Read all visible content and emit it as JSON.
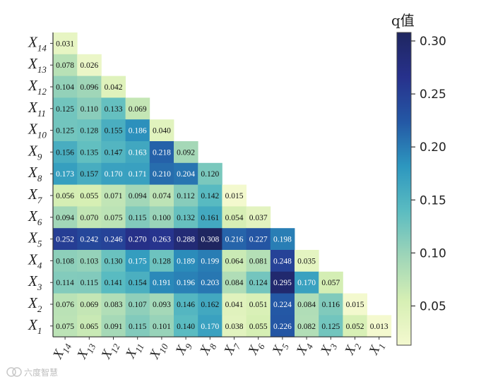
{
  "chart_data": {
    "type": "heatmap",
    "layout": "lower-triangle",
    "colorbar_title": "q值",
    "colorbar_ticks": [
      "0.05",
      "0.10",
      "0.15",
      "0.20",
      "0.25",
      "0.30"
    ],
    "colorbar_range": [
      0.013,
      0.308
    ],
    "colormap_stops": [
      "#f4f9cf",
      "#d6efb4",
      "#9ed5b8",
      "#5bbcc1",
      "#2d97bf",
      "#2458a5",
      "#27318c",
      "#1f2660"
    ],
    "row_labels": [
      {
        "base": "X",
        "sub": "14"
      },
      {
        "base": "X",
        "sub": "13"
      },
      {
        "base": "X",
        "sub": "12"
      },
      {
        "base": "X",
        "sub": "11"
      },
      {
        "base": "X",
        "sub": "10"
      },
      {
        "base": "X",
        "sub": "9"
      },
      {
        "base": "X",
        "sub": "8"
      },
      {
        "base": "X",
        "sub": "7"
      },
      {
        "base": "X",
        "sub": "6"
      },
      {
        "base": "X",
        "sub": "5"
      },
      {
        "base": "X",
        "sub": "4"
      },
      {
        "base": "X",
        "sub": "3"
      },
      {
        "base": "X",
        "sub": "2"
      },
      {
        "base": "X",
        "sub": "1"
      }
    ],
    "col_labels": [
      {
        "base": "X",
        "sub": "14"
      },
      {
        "base": "X",
        "sub": "13"
      },
      {
        "base": "X",
        "sub": "12"
      },
      {
        "base": "X",
        "sub": "11"
      },
      {
        "base": "X",
        "sub": "10"
      },
      {
        "base": "X",
        "sub": "9"
      },
      {
        "base": "X",
        "sub": "8"
      },
      {
        "base": "X",
        "sub": "7"
      },
      {
        "base": "X",
        "sub": "6"
      },
      {
        "base": "X",
        "sub": "5"
      },
      {
        "base": "X",
        "sub": "4"
      },
      {
        "base": "X",
        "sub": "3"
      },
      {
        "base": "X",
        "sub": "2"
      },
      {
        "base": "X",
        "sub": "1"
      }
    ],
    "values": [
      [
        "0.031"
      ],
      [
        "0.078",
        "0.026"
      ],
      [
        "0.104",
        "0.096",
        "0.042"
      ],
      [
        "0.125",
        "0.110",
        "0.133",
        "0.069"
      ],
      [
        "0.125",
        "0.128",
        "0.155",
        "0.186",
        "0.040"
      ],
      [
        "0.156",
        "0.135",
        "0.147",
        "0.163",
        "0.218",
        "0.092"
      ],
      [
        "0.173",
        "0.157",
        "0.170",
        "0.171",
        "0.210",
        "0.204",
        "0.120"
      ],
      [
        "0.056",
        "0.055",
        "0.071",
        "0.094",
        "0.074",
        "0.112",
        "0.142",
        "0.015"
      ],
      [
        "0.094",
        "0.070",
        "0.075",
        "0.115",
        "0.100",
        "0.132",
        "0.161",
        "0.054",
        "0.037"
      ],
      [
        "0.252",
        "0.242",
        "0.246",
        "0.270",
        "0.263",
        "0.288",
        "0.308",
        "0.216",
        "0.227",
        "0.198"
      ],
      [
        "0.108",
        "0.103",
        "0.130",
        "0.175",
        "0.128",
        "0.189",
        "0.199",
        "0.064",
        "0.081",
        "0.248",
        "0.035"
      ],
      [
        "0.114",
        "0.115",
        "0.141",
        "0.154",
        "0.191",
        "0.196",
        "0.203",
        "0.084",
        "0.124",
        "0.295",
        "0.170",
        "0.057"
      ],
      [
        "0.076",
        "0.069",
        "0.083",
        "0.107",
        "0.093",
        "0.146",
        "0.162",
        "0.041",
        "0.051",
        "0.224",
        "0.084",
        "0.116",
        "0.015"
      ],
      [
        "0.075",
        "0.065",
        "0.091",
        "0.115",
        "0.101",
        "0.140",
        "0.170",
        "0.038",
        "0.055",
        "0.226",
        "0.082",
        "0.125",
        "0.052",
        "0.013"
      ]
    ]
  },
  "watermark": {
    "text": "六度智慧"
  }
}
